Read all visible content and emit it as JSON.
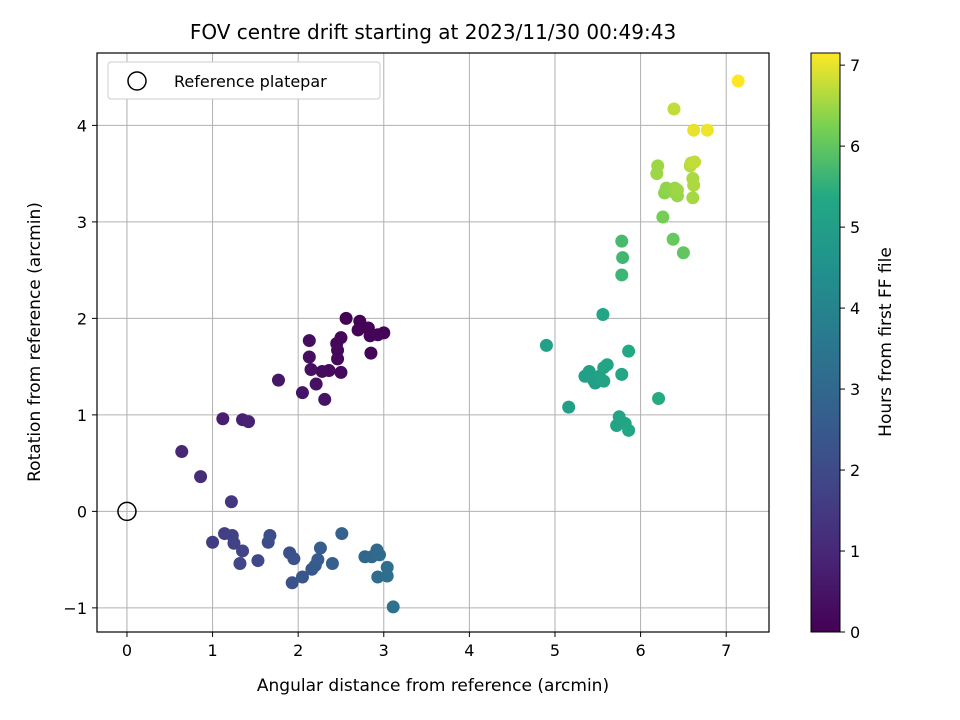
{
  "chart_data": {
    "type": "scatter",
    "title": "FOV centre drift starting at 2023/11/30 00:49:43",
    "xlabel": "Angular distance from reference (arcmin)",
    "ylabel": "Rotation from reference (arcmin)",
    "xlim": [
      -0.35,
      7.5
    ],
    "ylim": [
      -1.25,
      4.75
    ],
    "xticks": [
      0,
      1,
      2,
      3,
      4,
      5,
      6,
      7
    ],
    "yticks": [
      -1,
      0,
      1,
      2,
      3,
      4
    ],
    "ytick_labels": [
      "−1",
      "0",
      "1",
      "2",
      "3",
      "4"
    ],
    "grid": true,
    "legend": {
      "position": "top-left",
      "entries": [
        "Reference platepar"
      ]
    },
    "reference_point": {
      "x": 0,
      "y": 0,
      "marker": "open-circle"
    },
    "colorbar": {
      "label": "Hours from first FF file",
      "range": [
        0,
        7.15
      ],
      "ticks": [
        0,
        1,
        2,
        3,
        4,
        5,
        6,
        7
      ],
      "colormap": "viridis"
    },
    "points": [
      {
        "x": 2.56,
        "y": 2.0,
        "t": 0.02
      },
      {
        "x": 2.72,
        "y": 1.97,
        "t": 0.03
      },
      {
        "x": 2.7,
        "y": 1.88,
        "t": 0.05
      },
      {
        "x": 2.82,
        "y": 1.9,
        "t": 0.06
      },
      {
        "x": 2.84,
        "y": 1.82,
        "t": 0.07
      },
      {
        "x": 2.93,
        "y": 1.83,
        "t": 0.08
      },
      {
        "x": 3.0,
        "y": 1.85,
        "t": 0.09
      },
      {
        "x": 2.85,
        "y": 1.64,
        "t": 0.1
      },
      {
        "x": 2.5,
        "y": 1.8,
        "t": 0.14
      },
      {
        "x": 2.45,
        "y": 1.74,
        "t": 0.16
      },
      {
        "x": 2.46,
        "y": 1.67,
        "t": 0.18
      },
      {
        "x": 2.46,
        "y": 1.58,
        "t": 0.2
      },
      {
        "x": 2.5,
        "y": 1.44,
        "t": 0.22
      },
      {
        "x": 2.36,
        "y": 1.46,
        "t": 0.24
      },
      {
        "x": 2.28,
        "y": 1.45,
        "t": 0.27
      },
      {
        "x": 2.13,
        "y": 1.77,
        "t": 0.3
      },
      {
        "x": 2.13,
        "y": 1.6,
        "t": 0.32
      },
      {
        "x": 2.15,
        "y": 1.47,
        "t": 0.36
      },
      {
        "x": 2.21,
        "y": 1.32,
        "t": 0.4
      },
      {
        "x": 2.31,
        "y": 1.16,
        "t": 0.44
      },
      {
        "x": 2.05,
        "y": 1.23,
        "t": 0.48
      },
      {
        "x": 1.77,
        "y": 1.36,
        "t": 0.55
      },
      {
        "x": 1.12,
        "y": 0.96,
        "t": 0.75
      },
      {
        "x": 1.35,
        "y": 0.95,
        "t": 0.8
      },
      {
        "x": 1.42,
        "y": 0.93,
        "t": 0.85
      },
      {
        "x": 0.64,
        "y": 0.62,
        "t": 1.0
      },
      {
        "x": 0.86,
        "y": 0.36,
        "t": 1.15
      },
      {
        "x": 1.22,
        "y": 0.1,
        "t": 1.4
      },
      {
        "x": 1.0,
        "y": -0.32,
        "t": 1.6
      },
      {
        "x": 1.14,
        "y": -0.23,
        "t": 1.65
      },
      {
        "x": 1.23,
        "y": -0.25,
        "t": 1.7
      },
      {
        "x": 1.25,
        "y": -0.33,
        "t": 1.75
      },
      {
        "x": 1.35,
        "y": -0.41,
        "t": 1.8
      },
      {
        "x": 1.32,
        "y": -0.54,
        "t": 1.85
      },
      {
        "x": 1.53,
        "y": -0.51,
        "t": 1.95
      },
      {
        "x": 1.65,
        "y": -0.32,
        "t": 2.05
      },
      {
        "x": 1.67,
        "y": -0.25,
        "t": 2.1
      },
      {
        "x": 1.9,
        "y": -0.43,
        "t": 2.2
      },
      {
        "x": 1.95,
        "y": -0.49,
        "t": 2.25
      },
      {
        "x": 1.93,
        "y": -0.74,
        "t": 2.3
      },
      {
        "x": 2.05,
        "y": -0.68,
        "t": 2.38
      },
      {
        "x": 2.16,
        "y": -0.6,
        "t": 2.45
      },
      {
        "x": 2.2,
        "y": -0.56,
        "t": 2.5
      },
      {
        "x": 2.23,
        "y": -0.5,
        "t": 2.55
      },
      {
        "x": 2.26,
        "y": -0.38,
        "t": 2.6
      },
      {
        "x": 2.4,
        "y": -0.54,
        "t": 2.7
      },
      {
        "x": 2.51,
        "y": -0.23,
        "t": 2.8
      },
      {
        "x": 2.78,
        "y": -0.47,
        "t": 2.95
      },
      {
        "x": 2.86,
        "y": -0.47,
        "t": 3.0
      },
      {
        "x": 2.92,
        "y": -0.4,
        "t": 3.05
      },
      {
        "x": 2.95,
        "y": -0.45,
        "t": 3.1
      },
      {
        "x": 2.93,
        "y": -0.68,
        "t": 3.15
      },
      {
        "x": 3.04,
        "y": -0.58,
        "t": 3.2
      },
      {
        "x": 3.04,
        "y": -0.67,
        "t": 3.25
      },
      {
        "x": 3.11,
        "y": -0.99,
        "t": 3.35
      },
      {
        "x": 4.9,
        "y": 1.72,
        "t": 5.1
      },
      {
        "x": 5.16,
        "y": 1.08,
        "t": 5.05
      },
      {
        "x": 5.35,
        "y": 1.4,
        "t": 5.0
      },
      {
        "x": 5.38,
        "y": 1.42,
        "t": 5.0
      },
      {
        "x": 5.4,
        "y": 1.45,
        "t": 5.05
      },
      {
        "x": 5.45,
        "y": 1.36,
        "t": 5.1
      },
      {
        "x": 5.47,
        "y": 1.33,
        "t": 5.05
      },
      {
        "x": 5.52,
        "y": 1.4,
        "t": 5.1
      },
      {
        "x": 5.57,
        "y": 1.35,
        "t": 5.15
      },
      {
        "x": 5.57,
        "y": 1.49,
        "t": 5.2
      },
      {
        "x": 5.61,
        "y": 1.52,
        "t": 5.25
      },
      {
        "x": 5.56,
        "y": 2.04,
        "t": 5.3
      },
      {
        "x": 5.72,
        "y": 0.89,
        "t": 5.15
      },
      {
        "x": 5.75,
        "y": 0.98,
        "t": 5.2
      },
      {
        "x": 5.82,
        "y": 0.91,
        "t": 5.25
      },
      {
        "x": 5.86,
        "y": 0.84,
        "t": 5.3
      },
      {
        "x": 5.78,
        "y": 1.42,
        "t": 5.3
      },
      {
        "x": 5.86,
        "y": 1.66,
        "t": 5.35
      },
      {
        "x": 6.21,
        "y": 1.17,
        "t": 5.4
      },
      {
        "x": 5.78,
        "y": 2.45,
        "t": 5.65
      },
      {
        "x": 5.79,
        "y": 2.63,
        "t": 5.7
      },
      {
        "x": 5.78,
        "y": 2.8,
        "t": 5.75
      },
      {
        "x": 6.5,
        "y": 2.68,
        "t": 6.0
      },
      {
        "x": 6.38,
        "y": 2.82,
        "t": 6.05
      },
      {
        "x": 6.26,
        "y": 3.05,
        "t": 6.2
      },
      {
        "x": 6.28,
        "y": 3.3,
        "t": 6.35
      },
      {
        "x": 6.3,
        "y": 3.35,
        "t": 6.4
      },
      {
        "x": 6.35,
        "y": 3.32,
        "t": 6.4
      },
      {
        "x": 6.4,
        "y": 3.35,
        "t": 6.45
      },
      {
        "x": 6.43,
        "y": 3.27,
        "t": 6.45
      },
      {
        "x": 6.43,
        "y": 3.33,
        "t": 6.5
      },
      {
        "x": 6.19,
        "y": 3.5,
        "t": 6.5
      },
      {
        "x": 6.2,
        "y": 3.58,
        "t": 6.5
      },
      {
        "x": 6.61,
        "y": 3.25,
        "t": 6.55
      },
      {
        "x": 6.62,
        "y": 3.38,
        "t": 6.6
      },
      {
        "x": 6.61,
        "y": 3.45,
        "t": 6.6
      },
      {
        "x": 6.58,
        "y": 3.58,
        "t": 6.65
      },
      {
        "x": 6.59,
        "y": 3.61,
        "t": 6.7
      },
      {
        "x": 6.63,
        "y": 3.62,
        "t": 6.75
      },
      {
        "x": 6.39,
        "y": 4.17,
        "t": 6.75
      },
      {
        "x": 6.62,
        "y": 3.95,
        "t": 7.0
      },
      {
        "x": 6.78,
        "y": 3.95,
        "t": 7.05
      },
      {
        "x": 7.14,
        "y": 4.46,
        "t": 7.15
      }
    ]
  }
}
